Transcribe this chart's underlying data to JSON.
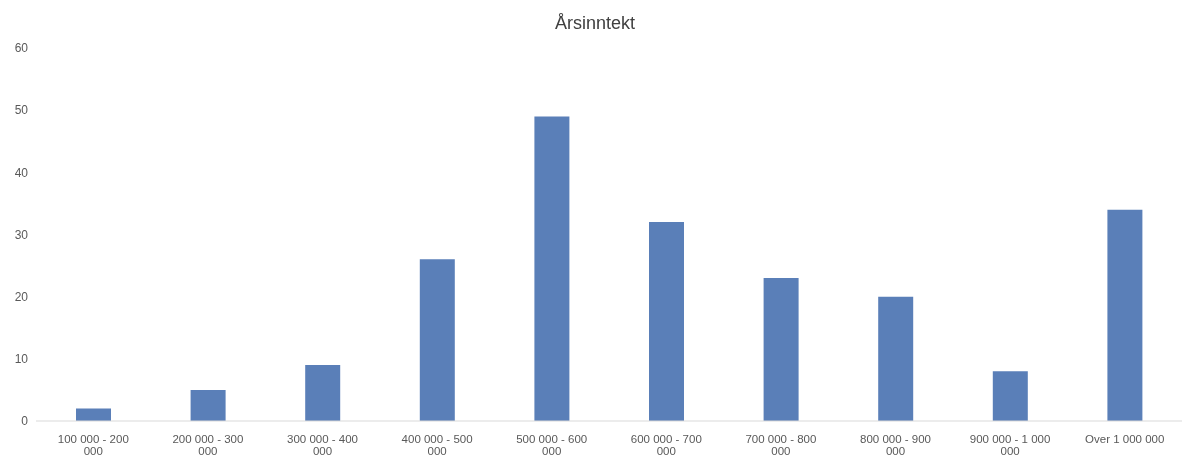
{
  "chart_data": {
    "type": "bar",
    "title": "Årsinntekt",
    "categories": [
      "100 000 - 200 000",
      "200 000 - 300 000",
      "300 000 - 400 000",
      "400 000 - 500 000",
      "500 000 - 600 000",
      "600 000 - 700 000",
      "700 000 - 800 000",
      "800 000 - 900 000",
      "900 000 - 1 000 000",
      "Over 1 000 000"
    ],
    "values": [
      2,
      5,
      9,
      26,
      49,
      32,
      23,
      20,
      8,
      34
    ],
    "color": "#5a7fb8",
    "ylim": [
      0,
      60
    ],
    "yticks": [
      0,
      10,
      20,
      30,
      40,
      50,
      60
    ],
    "grid": false,
    "legend": false
  }
}
